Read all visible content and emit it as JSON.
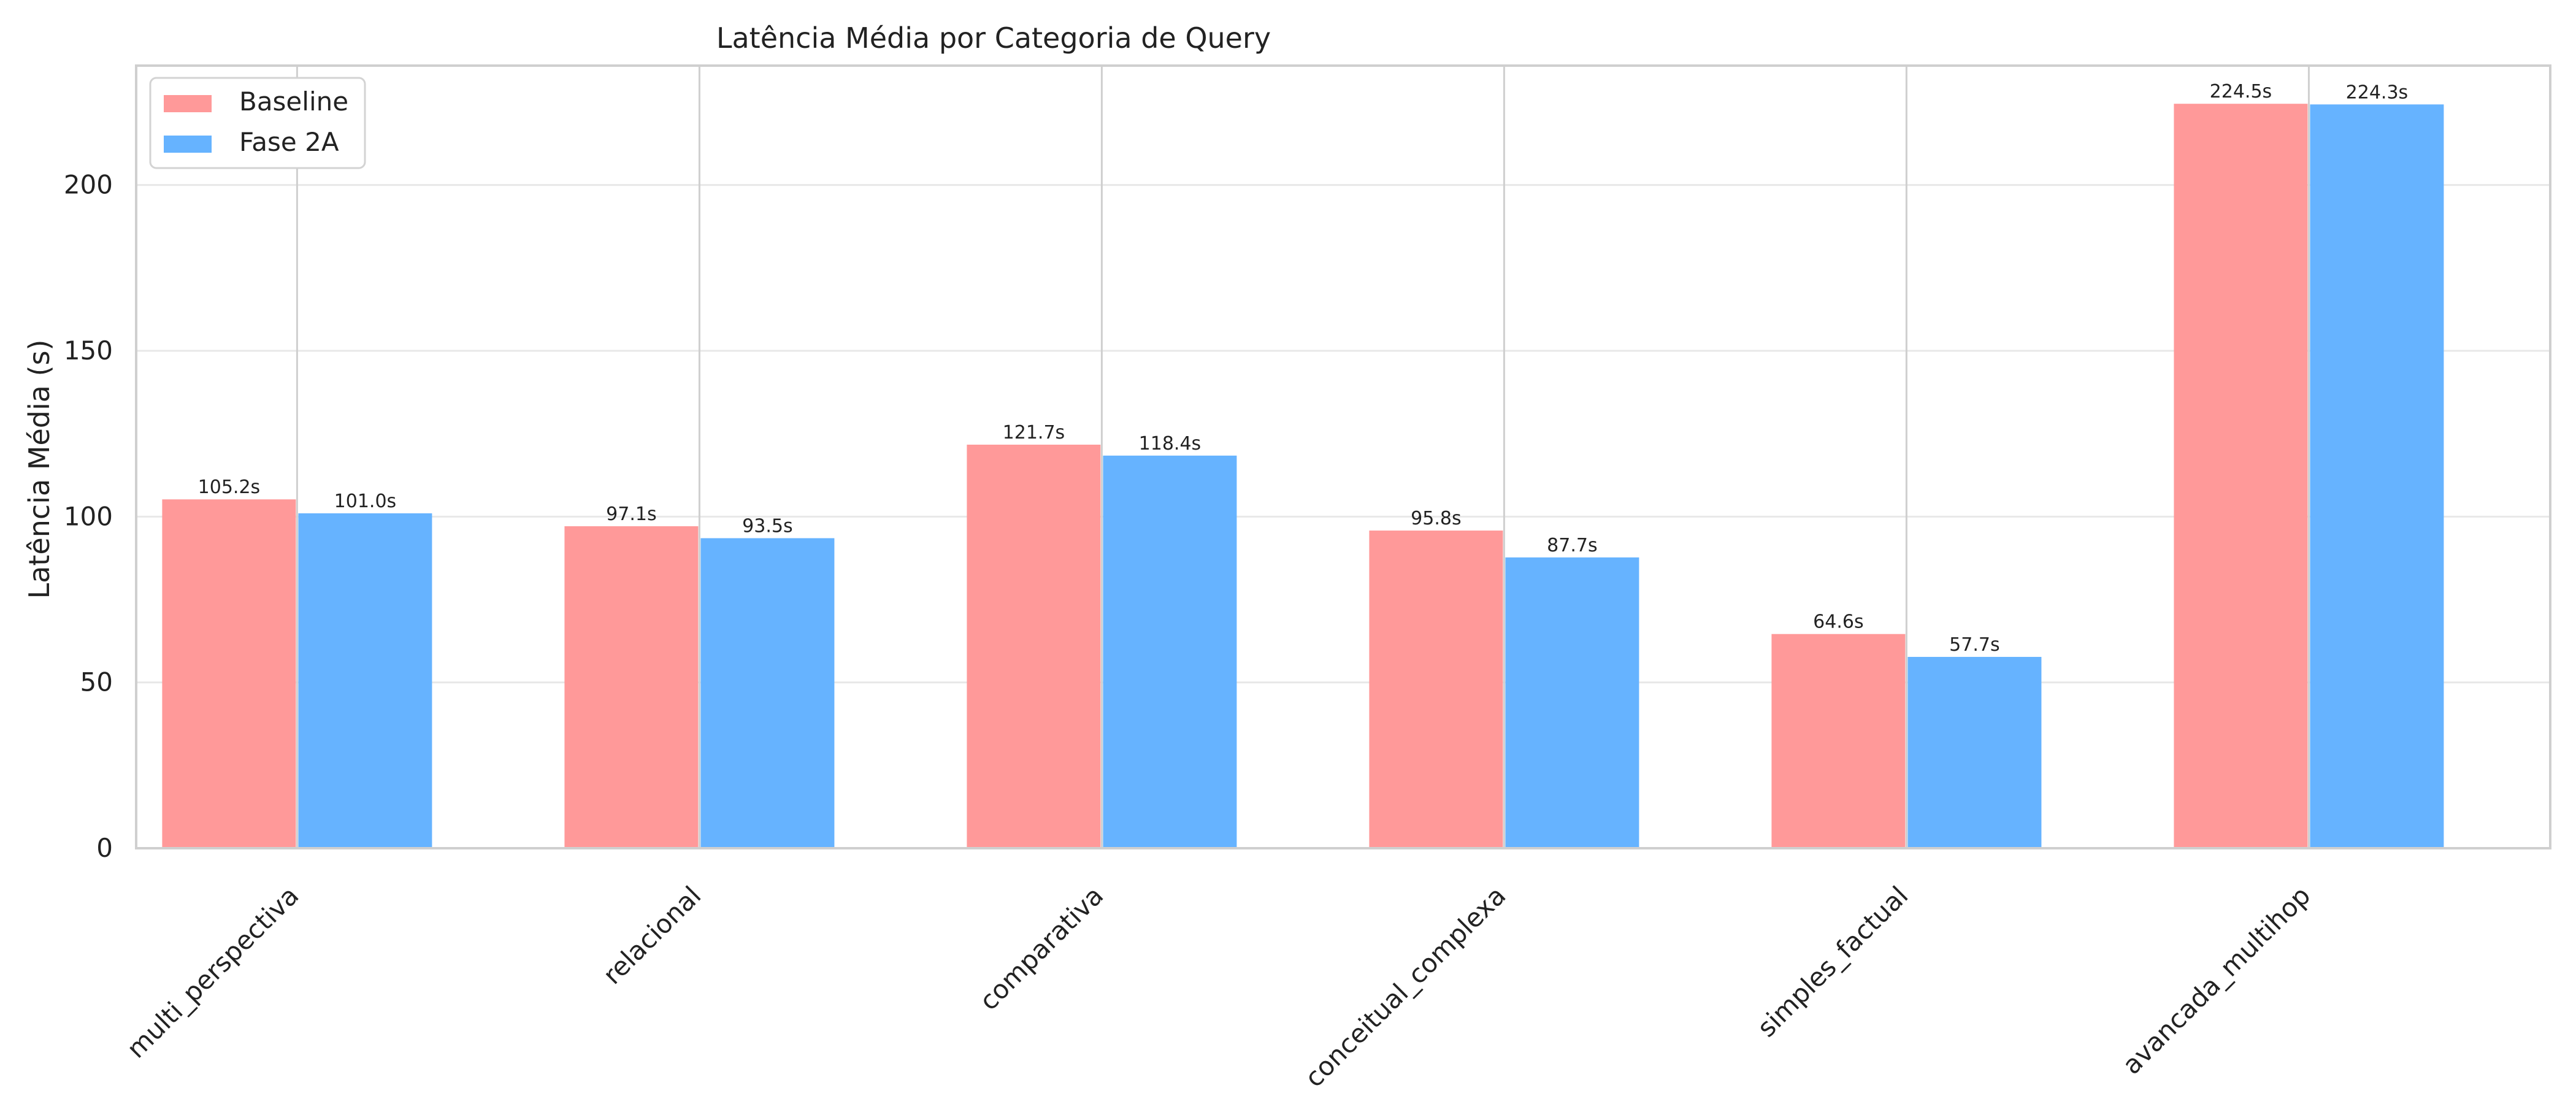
{
  "chart_data": {
    "type": "bar",
    "title": "Latência Média por Categoria de Query",
    "xlabel": "",
    "ylabel": "Latência Média (s)",
    "categories": [
      "multi_perspectiva",
      "relacional",
      "comparativa",
      "conceitual_complexa",
      "simples_factual",
      "avancada_multihop"
    ],
    "series": [
      {
        "name": "Baseline",
        "color": "#ff9999",
        "values": [
          105.2,
          97.1,
          121.7,
          95.8,
          64.6,
          224.5
        ],
        "labels": [
          "105.2s",
          "97.1s",
          "121.7s",
          "95.8s",
          "64.6s",
          "224.5s"
        ]
      },
      {
        "name": "Fase 2A",
        "color": "#66b3ff",
        "values": [
          101.0,
          93.5,
          118.4,
          87.7,
          57.7,
          224.3
        ],
        "labels": [
          "101.0s",
          "93.5s",
          "118.4s",
          "87.7s",
          "57.7s",
          "224.3s"
        ]
      }
    ],
    "ylim": [
      0,
      236
    ],
    "yticks": [
      0,
      50,
      100,
      150,
      200
    ],
    "ytick_labels": [
      "0",
      "50",
      "100",
      "150",
      "200"
    ],
    "grid": {
      "y_major": true,
      "x_major": true
    },
    "legend_position": "top-left"
  }
}
